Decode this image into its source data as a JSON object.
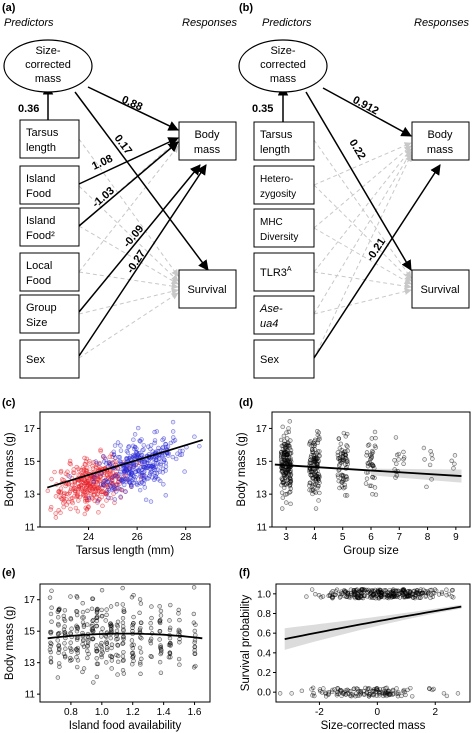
{
  "panel_labels": {
    "a": "(a)",
    "b": "(b)",
    "c": "(c)",
    "d": "(d)",
    "e": "(e)",
    "f": "(f)"
  },
  "panel_a": {
    "predictors_header": "Predictors",
    "responses_header": "Responses",
    "ellipse": [
      "Size-",
      "corrected",
      "mass"
    ],
    "predictor_boxes": [
      [
        "Tarsus",
        "length"
      ],
      [
        "Island",
        "Food"
      ],
      [
        "Island",
        "Food²"
      ],
      [
        "Local",
        "Food"
      ],
      [
        "Group",
        "Size"
      ],
      [
        "Sex"
      ]
    ],
    "response_boxes": [
      [
        "Body",
        "mass"
      ],
      [
        "Survival"
      ]
    ],
    "coefficients": {
      "tarsus_to_size": "0.36",
      "size_to_mass": "0.88",
      "size_to_survival": "0.17",
      "island_food": "1.08",
      "island_food_sq": "-1.03",
      "group_size_mass": "-0.09",
      "sex_mass": "-0.27"
    }
  },
  "panel_b": {
    "predictors_header": "Predictors",
    "responses_header": "Responses",
    "ellipse": [
      "Size-",
      "corrected",
      "mass"
    ],
    "predictor_boxes": [
      [
        "Tarsus",
        "length"
      ],
      [
        "Hetero-",
        "zygosity"
      ],
      [
        "MHC",
        "Diversity"
      ],
      [
        "TLR3",
        "A"
      ],
      [
        "Ase-",
        "ua4"
      ],
      [
        "Sex"
      ]
    ],
    "response_boxes": [
      [
        "Body",
        "mass"
      ],
      [
        "Survival"
      ]
    ],
    "coefficients": {
      "tarsus_to_size": "0.35",
      "size_to_mass": "0.912",
      "size_to_survival": "0.22",
      "sex_survival": "-0.21"
    }
  },
  "chart_data": [
    {
      "panel": "c",
      "type": "scatter",
      "xlabel": "Tarsus length (mm)",
      "ylabel": "Body mass (g)",
      "xlim": [
        22,
        29
      ],
      "ylim": [
        11,
        18
      ],
      "x_ticks": [
        24,
        26,
        28
      ],
      "y_ticks": [
        11,
        13,
        15,
        17
      ],
      "series": [
        {
          "color": "#e8202a",
          "x_range": [
            22.5,
            26
          ],
          "y_range": [
            12.5,
            16
          ]
        },
        {
          "color": "#2b2bd6",
          "x_range": [
            24.5,
            28.5
          ],
          "y_range": [
            13.5,
            17
          ]
        }
      ],
      "trend": {
        "x": [
          22.3,
          28.7
        ],
        "y": [
          13.4,
          16.3
        ],
        "color": "#000000"
      }
    },
    {
      "panel": "d",
      "type": "scatter",
      "xlabel": "Group size",
      "ylabel": "Body mass (g)",
      "xlim": [
        2.5,
        9.5
      ],
      "ylim": [
        11,
        18
      ],
      "categories": [
        3,
        4,
        5,
        6,
        7,
        8,
        9
      ],
      "y_ticks": [
        11,
        13,
        15,
        17
      ],
      "points_per_group": [
        180,
        130,
        70,
        40,
        15,
        8,
        4
      ],
      "trend": {
        "x": [
          2.6,
          9.2
        ],
        "y": [
          14.8,
          14.1
        ],
        "color": "#000000"
      }
    },
    {
      "panel": "e",
      "type": "scatter",
      "xlabel": "Island food availability",
      "ylabel": "Body mass (g)",
      "xlim": [
        0.6,
        1.7
      ],
      "ylim": [
        10.5,
        18
      ],
      "x_ticks": [
        0.8,
        1.0,
        1.2,
        1.4,
        1.6
      ],
      "y_ticks": [
        11,
        13,
        15,
        17
      ],
      "trend": {
        "x": [
          0.65,
          1.65
        ],
        "y": [
          [
            14.6
          ],
          [
            14.9
          ],
          [
            14.8
          ]
        ],
        "shape": "slight hump",
        "color": "#000000"
      }
    },
    {
      "panel": "f",
      "type": "scatter",
      "xlabel": "Size-corrected mass",
      "ylabel": "Survival probability",
      "xlim": [
        -3.5,
        3.2
      ],
      "ylim": [
        -0.1,
        1.1
      ],
      "x_ticks": [
        -2,
        0,
        2
      ],
      "y_ticks": [
        0.0,
        0.2,
        0.4,
        0.6,
        0.8,
        1.0
      ],
      "trend": {
        "x": [
          -3.2,
          2.9
        ],
        "y": [
          0.57,
          0.87
        ],
        "color": "#000000"
      }
    }
  ],
  "tick_text": {
    "c_x": [
      "24",
      "26",
      "28"
    ],
    "c_y": [
      "11",
      "13",
      "15",
      "17"
    ],
    "d_x": [
      "3",
      "4",
      "5",
      "6",
      "7",
      "8",
      "9"
    ],
    "d_y": [
      "11",
      "13",
      "15",
      "17"
    ],
    "e_x": [
      "0.8",
      "1.0",
      "1.2",
      "1.4",
      "1.6"
    ],
    "e_y": [
      "11",
      "13",
      "15",
      "17"
    ],
    "f_x": [
      "-2",
      "0",
      "2"
    ],
    "f_y": [
      "0.0",
      "0.2",
      "0.4",
      "0.6",
      "0.8",
      "1.0"
    ]
  },
  "axis_text": {
    "c_x": "Tarsus length (mm)",
    "c_y": "Body mass (g)",
    "d_x": "Group size",
    "d_y": "Body mass (g)",
    "e_x": "Island food availability",
    "e_y": "Body mass (g)",
    "f_x": "Size-corrected mass",
    "f_y": "Survival probability"
  }
}
